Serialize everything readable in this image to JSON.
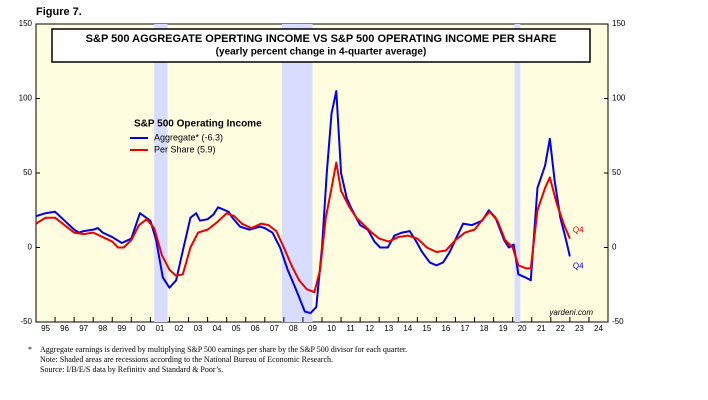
{
  "figure_label": "Figure 7.",
  "chart_data": {
    "type": "line",
    "title": "S&P 500 AGGREGATE OPERTING INCOME VS S&P 500 OPERATING INCOME PER SHARE",
    "subtitle": "(yearly percent change in 4-quarter average)",
    "legend_title": "S&P 500 Operating Income",
    "source_label": "yardeni.com",
    "xlim": [
      1995,
      2025
    ],
    "ylim": [
      -50,
      150
    ],
    "yticks": [
      -50,
      0,
      50,
      100,
      150
    ],
    "grid": false,
    "xticks": [
      {
        "value": 1995.5,
        "label": "95"
      },
      {
        "value": 1996.5,
        "label": "96"
      },
      {
        "value": 1997.5,
        "label": "97"
      },
      {
        "value": 1998.5,
        "label": "98"
      },
      {
        "value": 1999.5,
        "label": "99"
      },
      {
        "value": 2000.5,
        "label": "00"
      },
      {
        "value": 2001.5,
        "label": "01"
      },
      {
        "value": 2002.5,
        "label": "02"
      },
      {
        "value": 2003.5,
        "label": "03"
      },
      {
        "value": 2004.5,
        "label": "04"
      },
      {
        "value": 2005.5,
        "label": "05"
      },
      {
        "value": 2006.5,
        "label": "06"
      },
      {
        "value": 2007.5,
        "label": "07"
      },
      {
        "value": 2008.5,
        "label": "08"
      },
      {
        "value": 2009.5,
        "label": "09"
      },
      {
        "value": 2010.5,
        "label": "10"
      },
      {
        "value": 2011.5,
        "label": "11"
      },
      {
        "value": 2012.5,
        "label": "12"
      },
      {
        "value": 2013.5,
        "label": "13"
      },
      {
        "value": 2014.5,
        "label": "14"
      },
      {
        "value": 2015.5,
        "label": "15"
      },
      {
        "value": 2016.5,
        "label": "16"
      },
      {
        "value": 2017.5,
        "label": "17"
      },
      {
        "value": 2018.5,
        "label": "18"
      },
      {
        "value": 2019.5,
        "label": "19"
      },
      {
        "value": 2020.5,
        "label": "20"
      },
      {
        "value": 2021.5,
        "label": "21"
      },
      {
        "value": 2022.5,
        "label": "22"
      },
      {
        "value": 2023.5,
        "label": "23"
      },
      {
        "value": 2024.5,
        "label": "24"
      }
    ],
    "recessions": [
      {
        "start": 2001.2,
        "end": 2001.9
      },
      {
        "start": 2007.9,
        "end": 2009.5
      },
      {
        "start": 2020.1,
        "end": 2020.4
      }
    ],
    "series": [
      {
        "name": "Aggregate* (-6.3)",
        "color": "#0000ee",
        "end_label": "Q4",
        "x": [
          1995.0,
          1995.5,
          1996.0,
          1996.5,
          1997.0,
          1997.25,
          1997.5,
          1998.0,
          1998.25,
          1998.5,
          1999.0,
          1999.5,
          2000.0,
          2000.45,
          2001.0,
          2001.3,
          2001.65,
          2002.0,
          2002.35,
          2002.65,
          2003.1,
          2003.4,
          2003.6,
          2004.0,
          2004.3,
          2004.55,
          2005.1,
          2005.3,
          2005.7,
          2006.2,
          2006.75,
          2007.0,
          2007.4,
          2007.8,
          2008.2,
          2008.6,
          2008.85,
          2009.1,
          2009.4,
          2009.7,
          2010.0,
          2010.25,
          2010.5,
          2010.75,
          2011.0,
          2011.3,
          2011.55,
          2012.0,
          2012.4,
          2012.75,
          2013.05,
          2013.45,
          2013.8,
          2014.2,
          2014.6,
          2014.9,
          2015.25,
          2015.65,
          2016.0,
          2016.35,
          2016.7,
          2017.1,
          2017.4,
          2017.85,
          2018.4,
          2018.75,
          2019.1,
          2019.55,
          2019.8,
          2020.05,
          2020.3,
          2020.65,
          2020.95,
          2021.3,
          2021.7,
          2021.95,
          2022.2,
          2022.5,
          2022.8,
          2023.0
        ],
        "values": [
          21,
          23,
          24,
          18,
          12,
          10,
          11,
          12,
          13,
          10,
          7,
          3,
          6,
          23,
          18,
          5,
          -20,
          -27,
          -22,
          -5,
          20,
          23,
          18,
          19,
          22,
          27,
          24,
          20,
          14,
          12,
          14,
          13,
          10,
          0,
          -15,
          -27,
          -35,
          -43,
          -44,
          -40,
          0,
          50,
          90,
          105,
          50,
          33,
          26,
          15,
          12,
          4,
          0,
          0,
          8,
          10,
          11,
          5,
          -3,
          -10,
          -12,
          -10,
          -3,
          8,
          16,
          15,
          18,
          25,
          20,
          5,
          0,
          2,
          -18,
          -20,
          -22,
          40,
          55,
          73,
          45,
          20,
          5,
          -6
        ]
      },
      {
        "name": "Per Share (5.9)",
        "color": "#ee0000",
        "end_label": "Q4",
        "x": [
          1995.0,
          1995.5,
          1996.0,
          1996.5,
          1997.0,
          1997.5,
          1998.0,
          1998.5,
          1999.0,
          1999.3,
          1999.6,
          2000.0,
          2000.4,
          2000.8,
          2001.2,
          2001.6,
          2002.0,
          2002.35,
          2002.7,
          2003.1,
          2003.5,
          2004.0,
          2004.5,
          2005.0,
          2005.4,
          2005.8,
          2006.3,
          2006.8,
          2007.2,
          2007.6,
          2008.0,
          2008.4,
          2008.8,
          2009.2,
          2009.6,
          2009.9,
          2010.2,
          2010.5,
          2010.75,
          2011.0,
          2011.4,
          2011.8,
          2012.2,
          2012.6,
          2013.0,
          2013.5,
          2014.0,
          2014.5,
          2015.0,
          2015.5,
          2016.0,
          2016.5,
          2017.0,
          2017.5,
          2018.0,
          2018.5,
          2018.8,
          2019.2,
          2019.6,
          2020.0,
          2020.3,
          2020.7,
          2020.95,
          2021.3,
          2021.7,
          2021.95,
          2022.3,
          2022.7,
          2023.0
        ],
        "values": [
          16,
          20,
          20,
          15,
          10,
          9,
          10,
          7,
          4,
          0,
          0,
          5,
          15,
          19,
          13,
          -5,
          -15,
          -19,
          -18,
          0,
          10,
          12,
          17,
          23,
          21,
          16,
          13,
          16,
          15,
          11,
          0,
          -12,
          -22,
          -28,
          -30,
          -15,
          20,
          40,
          57,
          38,
          28,
          20,
          15,
          10,
          6,
          4,
          7,
          8,
          6,
          0,
          -3,
          -2,
          5,
          10,
          12,
          20,
          24,
          18,
          5,
          0,
          -12,
          -14,
          -14,
          25,
          40,
          47,
          30,
          15,
          6
        ]
      }
    ]
  },
  "footnote": {
    "marker": "*",
    "lines": [
      "Aggregate earnings is  derived by multiplying S&P 500 earnings per share by the S&P 500 divisor for each quarter.",
      "Note: Shaded areas are recessions according to the National Bureau of Economic Research.",
      "Source: I/B/E/S data by Refinitiv and Standard & Poor’s."
    ]
  }
}
